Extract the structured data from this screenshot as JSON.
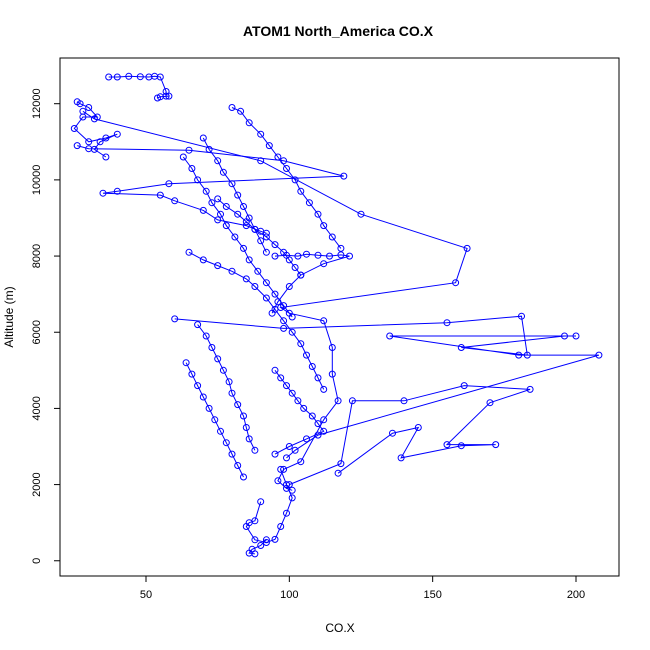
{
  "chart_data": {
    "type": "scatter",
    "title": "ATOM1 North_America CO.X",
    "xlabel": "CO.X",
    "ylabel": "Altitude (m)",
    "xlim": [
      20,
      215
    ],
    "ylim": [
      -400,
      13200
    ],
    "xticks": [
      50,
      100,
      150,
      200
    ],
    "yticks": [
      0,
      2000,
      4000,
      6000,
      8000,
      10000,
      12000
    ],
    "grid": false,
    "legend": "none",
    "color": "#0000ff",
    "marker": "open-circle",
    "connected": true,
    "series": [
      {
        "x": [
          37,
          40,
          44,
          48,
          51,
          53,
          55,
          57,
          57,
          58,
          55,
          54
        ],
        "y": [
          12700,
          12700,
          12720,
          12710,
          12700,
          12720,
          12700,
          12320,
          12200,
          12200,
          12180,
          12150
        ]
      },
      {
        "x": [
          26,
          27,
          30,
          33,
          28,
          25,
          30,
          36,
          40,
          34,
          32,
          36
        ],
        "y": [
          12050,
          12000,
          11900,
          11650,
          11650,
          11350,
          11000,
          11100,
          11200,
          11000,
          10800,
          10600
        ]
      },
      {
        "x": [
          26,
          30,
          65,
          98,
          119,
          58,
          40,
          35,
          55,
          60,
          70,
          75,
          85,
          90,
          92
        ],
        "y": [
          10900,
          10820,
          10780,
          10500,
          10100,
          9900,
          9700,
          9650,
          9600,
          9450,
          9200,
          8950,
          8800,
          8650,
          8600
        ]
      },
      {
        "x": [
          28,
          32,
          90,
          125,
          162,
          158,
          97,
          100,
          112,
          115,
          115,
          117,
          112,
          104,
          98,
          96,
          99,
          101
        ],
        "y": [
          11800,
          11600,
          10500,
          9100,
          8200,
          7300,
          6650,
          6500,
          6300,
          5600,
          4900,
          4200,
          3700,
          2600,
          2400,
          2100,
          1900,
          1850
        ]
      },
      {
        "x": [
          60,
          98,
          155,
          181,
          183,
          160,
          196,
          200,
          135,
          180,
          208,
          110,
          102,
          99
        ],
        "y": [
          6350,
          6100,
          6250,
          6420,
          5400,
          5600,
          5900,
          5900,
          5900,
          5400,
          5400,
          3300,
          2900,
          2700
        ]
      },
      {
        "x": [
          100,
          118,
          122,
          140,
          161,
          184,
          170,
          155,
          172,
          160,
          139,
          145,
          136,
          117
        ],
        "y": [
          2000,
          2550,
          4200,
          4200,
          4600,
          4500,
          4150,
          3050,
          3050,
          3020,
          2700,
          3500,
          3350,
          2300
        ]
      },
      {
        "x": [
          90,
          88,
          86,
          85,
          88,
          92,
          95,
          97,
          99,
          101,
          99,
          97
        ],
        "y": [
          1550,
          1050,
          1000,
          900,
          550,
          480,
          560,
          900,
          1250,
          1650,
          2000,
          2400
        ]
      },
      {
        "x": [
          92,
          90,
          87,
          86,
          88
        ],
        "y": [
          550,
          400,
          300,
          200,
          180
        ]
      },
      {
        "x": [
          65,
          70,
          75,
          80,
          85,
          88,
          92,
          95,
          98,
          101,
          104,
          106,
          108,
          110,
          112
        ],
        "y": [
          8100,
          7900,
          7750,
          7600,
          7400,
          7200,
          6900,
          6600,
          6300,
          6000,
          5700,
          5400,
          5100,
          4800,
          4500
        ]
      },
      {
        "x": [
          80,
          83,
          86,
          90,
          93,
          96,
          99,
          102,
          104,
          107,
          110,
          112,
          115,
          118
        ],
        "y": [
          11900,
          11800,
          11500,
          11200,
          10900,
          10600,
          10300,
          10000,
          9700,
          9400,
          9100,
          8800,
          8500,
          8200
        ]
      },
      {
        "x": [
          70,
          72,
          75,
          77,
          80,
          82,
          84,
          86,
          88,
          90,
          92
        ],
        "y": [
          11100,
          10800,
          10500,
          10200,
          9900,
          9600,
          9300,
          9000,
          8700,
          8400,
          8100
        ]
      },
      {
        "x": [
          63,
          66,
          68,
          71,
          73,
          76,
          78,
          81,
          84,
          86,
          89,
          92,
          95,
          98,
          101
        ],
        "y": [
          10600,
          10300,
          10000,
          9700,
          9400,
          9100,
          8800,
          8500,
          8200,
          7900,
          7600,
          7300,
          7000,
          6700,
          6400
        ]
      },
      {
        "x": [
          68,
          71,
          73,
          75,
          77,
          79,
          80,
          82,
          84,
          85,
          86,
          88
        ],
        "y": [
          6200,
          5900,
          5600,
          5300,
          5000,
          4700,
          4400,
          4100,
          3800,
          3500,
          3200,
          2900
        ]
      },
      {
        "x": [
          64,
          66,
          68,
          70,
          72,
          74,
          76,
          78,
          80,
          82,
          84
        ],
        "y": [
          5200,
          4900,
          4600,
          4300,
          4000,
          3700,
          3400,
          3100,
          2800,
          2500,
          2200
        ]
      },
      {
        "x": [
          95,
          99,
          103,
          106,
          110,
          114,
          118,
          121,
          112,
          104,
          100,
          96,
          94
        ],
        "y": [
          8000,
          8020,
          8000,
          8050,
          8020,
          8000,
          8030,
          8000,
          7800,
          7500,
          7200,
          6800,
          6500
        ]
      },
      {
        "x": [
          95,
          97,
          99,
          101,
          103,
          105,
          108,
          110,
          112,
          106,
          100,
          95
        ],
        "y": [
          5000,
          4800,
          4600,
          4400,
          4200,
          4000,
          3800,
          3600,
          3400,
          3200,
          3000,
          2800
        ]
      },
      {
        "x": [
          75,
          78,
          82,
          85,
          88,
          92,
          95,
          98,
          100,
          102,
          104
        ],
        "y": [
          9500,
          9300,
          9100,
          8900,
          8700,
          8500,
          8300,
          8100,
          7900,
          7700,
          7500
        ]
      }
    ]
  }
}
